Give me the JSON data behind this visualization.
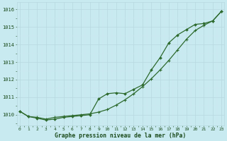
{
  "x": [
    0,
    1,
    2,
    3,
    4,
    5,
    6,
    7,
    8,
    9,
    10,
    11,
    12,
    13,
    14,
    15,
    16,
    17,
    18,
    19,
    20,
    21,
    22,
    23
  ],
  "line_smooth": [
    1010.2,
    1009.9,
    1009.85,
    1009.75,
    1009.85,
    1009.9,
    1009.95,
    1010.0,
    1010.05,
    1010.15,
    1010.3,
    1010.55,
    1010.85,
    1011.2,
    1011.6,
    1012.05,
    1012.55,
    1013.1,
    1013.7,
    1014.3,
    1014.8,
    1015.1,
    1015.35,
    1015.9
  ],
  "line_jagged": [
    1010.2,
    1009.9,
    1009.8,
    1009.7,
    1009.75,
    1009.85,
    1009.9,
    1009.95,
    1010.0,
    1010.9,
    1011.2,
    1011.25,
    1011.2,
    1011.45,
    1011.7,
    1012.55,
    1013.25,
    1014.1,
    1014.55,
    1014.85,
    1015.15,
    1015.2,
    1015.35,
    1015.9
  ],
  "line_color": "#2d6a2d",
  "bg_color": "#c8eaf0",
  "grid_color_major": "#b8d8e0",
  "grid_color_minor": "#d0e8f0",
  "ylabel_values": [
    1010,
    1011,
    1012,
    1013,
    1014,
    1015,
    1016
  ],
  "ylim": [
    1009.4,
    1016.4
  ],
  "xlim": [
    -0.3,
    23.3
  ],
  "xlabel": "Graphe pression niveau de la mer (hPa)",
  "label_color": "#1a4a1a",
  "marker_size_plus": 3.5,
  "marker_size_diamond": 2.0,
  "line_width": 0.9,
  "tick_fontsize": 5.0,
  "xlabel_fontsize": 5.8
}
